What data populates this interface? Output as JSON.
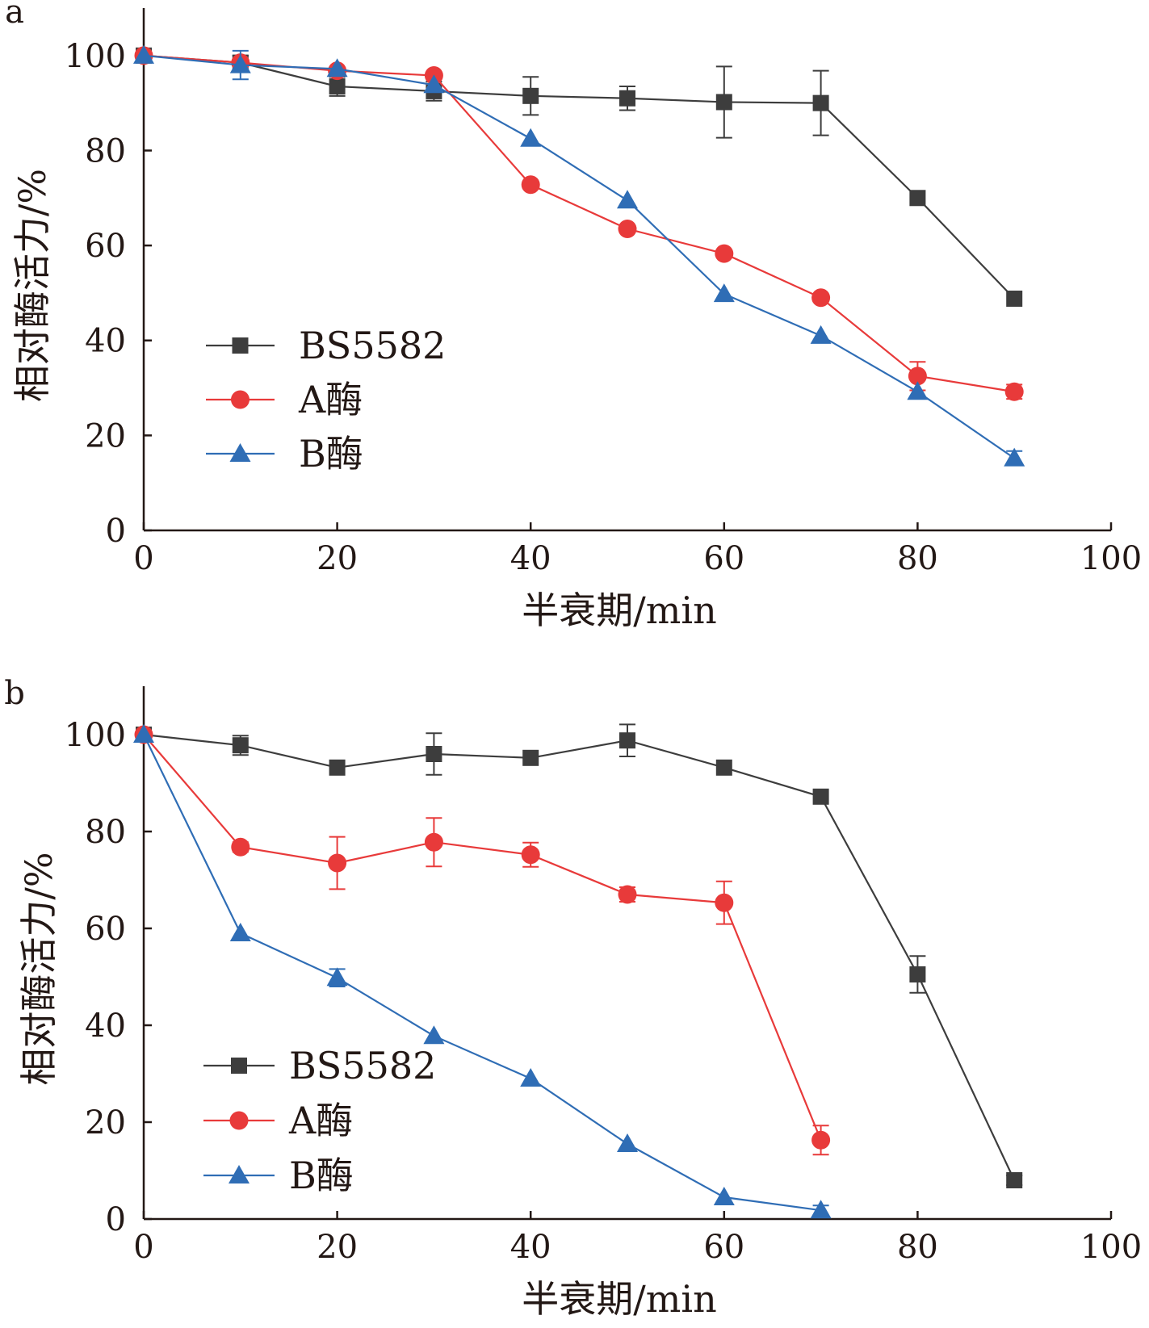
{
  "chart_data": [
    {
      "panel_label": "a",
      "type": "line",
      "xlabel": "半衰期/min",
      "ylabel": "相对酶活力/%",
      "xlim": [
        0,
        100
      ],
      "ylim": [
        0,
        110
      ],
      "xticks": [
        "0",
        "20",
        "40",
        "60",
        "80",
        "100"
      ],
      "yticks": [
        "0",
        "20",
        "40",
        "60",
        "80",
        "100"
      ],
      "legend_position": "lower-left",
      "series": [
        {
          "name": "BS5582",
          "color": "#3d3d3d",
          "marker": "square",
          "points": [
            {
              "x": 0,
              "y": 100,
              "err": 0
            },
            {
              "x": 10,
              "y": 98.5,
              "err": 1.5
            },
            {
              "x": 20,
              "y": 93.5,
              "err": 2
            },
            {
              "x": 30,
              "y": 92.5,
              "err": 2
            },
            {
              "x": 40,
              "y": 91.5,
              "err": 4
            },
            {
              "x": 50,
              "y": 91,
              "err": 2.5
            },
            {
              "x": 60,
              "y": 90.2,
              "err": 7.5
            },
            {
              "x": 70,
              "y": 90,
              "err": 6.8
            },
            {
              "x": 80,
              "y": 70,
              "err": 0
            },
            {
              "x": 90,
              "y": 48.8,
              "err": 0
            }
          ]
        },
        {
          "name": "A酶",
          "color": "#e83a3a",
          "marker": "circle",
          "points": [
            {
              "x": 0,
              "y": 100,
              "err": 0
            },
            {
              "x": 10,
              "y": 98.5,
              "err": 0
            },
            {
              "x": 20,
              "y": 96.8,
              "err": 0
            },
            {
              "x": 30,
              "y": 95.8,
              "err": 0
            },
            {
              "x": 40,
              "y": 72.8,
              "err": 0
            },
            {
              "x": 50,
              "y": 63.5,
              "err": 0
            },
            {
              "x": 60,
              "y": 58.3,
              "err": 0
            },
            {
              "x": 70,
              "y": 49,
              "err": 0
            },
            {
              "x": 80,
              "y": 32.5,
              "err": 3
            },
            {
              "x": 90,
              "y": 29.2,
              "err": 1.5
            }
          ]
        },
        {
          "name": "B酶",
          "color": "#2f6db5",
          "marker": "triangle",
          "points": [
            {
              "x": 0,
              "y": 100,
              "err": 0
            },
            {
              "x": 10,
              "y": 98,
              "err": 3
            },
            {
              "x": 20,
              "y": 97.2,
              "err": 0
            },
            {
              "x": 30,
              "y": 93.8,
              "err": 0
            },
            {
              "x": 40,
              "y": 82.5,
              "err": 0
            },
            {
              "x": 50,
              "y": 69.5,
              "err": 0
            },
            {
              "x": 60,
              "y": 49.8,
              "err": 0
            },
            {
              "x": 70,
              "y": 41,
              "err": 0
            },
            {
              "x": 80,
              "y": 29.2,
              "err": 0
            },
            {
              "x": 90,
              "y": 15.2,
              "err": 1.5
            }
          ]
        }
      ]
    },
    {
      "panel_label": "b",
      "type": "line",
      "xlabel": "半衰期/min",
      "ylabel": "相对酶活力/%",
      "xlim": [
        0,
        100
      ],
      "ylim": [
        0,
        110
      ],
      "xticks": [
        "0",
        "20",
        "40",
        "60",
        "80",
        "100"
      ],
      "yticks": [
        "0",
        "20",
        "40",
        "60",
        "80",
        "100"
      ],
      "legend_position": "lower-left",
      "series": [
        {
          "name": "BS5582",
          "color": "#3d3d3d",
          "marker": "square",
          "points": [
            {
              "x": 0,
              "y": 100,
              "err": 0
            },
            {
              "x": 10,
              "y": 97.8,
              "err": 2
            },
            {
              "x": 20,
              "y": 93.2,
              "err": 0
            },
            {
              "x": 30,
              "y": 96,
              "err": 4.3
            },
            {
              "x": 40,
              "y": 95.2,
              "err": 0
            },
            {
              "x": 50,
              "y": 98.8,
              "err": 3.3
            },
            {
              "x": 60,
              "y": 93.2,
              "err": 0
            },
            {
              "x": 70,
              "y": 87.2,
              "err": 0
            },
            {
              "x": 80,
              "y": 50.5,
              "err": 3.8
            },
            {
              "x": 90,
              "y": 8,
              "err": 1
            }
          ]
        },
        {
          "name": "A酶",
          "color": "#e83a3a",
          "marker": "circle",
          "points": [
            {
              "x": 0,
              "y": 100,
              "err": 0
            },
            {
              "x": 10,
              "y": 76.8,
              "err": 1
            },
            {
              "x": 20,
              "y": 73.5,
              "err": 5.4
            },
            {
              "x": 30,
              "y": 77.8,
              "err": 5
            },
            {
              "x": 40,
              "y": 75.2,
              "err": 2.5
            },
            {
              "x": 50,
              "y": 67,
              "err": 1.5
            },
            {
              "x": 60,
              "y": 65.3,
              "err": 4.4
            },
            {
              "x": 70,
              "y": 16.3,
              "err": 3
            }
          ]
        },
        {
          "name": "B酶",
          "color": "#2f6db5",
          "marker": "triangle",
          "points": [
            {
              "x": 0,
              "y": 100,
              "err": 0
            },
            {
              "x": 10,
              "y": 59,
              "err": 0
            },
            {
              "x": 20,
              "y": 49.8,
              "err": 1.8
            },
            {
              "x": 30,
              "y": 37.8,
              "err": 0
            },
            {
              "x": 40,
              "y": 29,
              "err": 0
            },
            {
              "x": 50,
              "y": 15.5,
              "err": 0
            },
            {
              "x": 60,
              "y": 4.5,
              "err": 0
            },
            {
              "x": 70,
              "y": 1.8,
              "err": 1
            }
          ]
        }
      ]
    }
  ]
}
